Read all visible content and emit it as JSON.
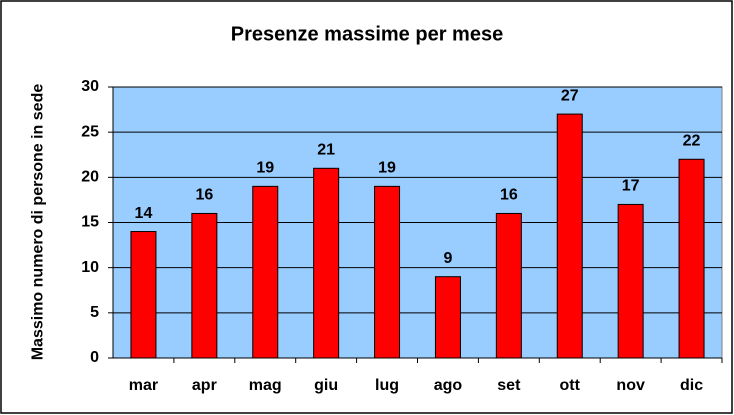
{
  "chart_data": {
    "type": "bar",
    "title": "Presenze massime per mese",
    "y_label": "Massimo numero di persone in sede",
    "categories": [
      "mar",
      "apr",
      "mag",
      "giu",
      "lug",
      "ago",
      "set",
      "ott",
      "nov",
      "dic"
    ],
    "values": [
      14,
      16,
      19,
      21,
      19,
      9,
      16,
      27,
      17,
      22
    ],
    "color": "#ff0000",
    "plot_background": "#99ccff",
    "ylim": [
      0,
      30
    ],
    "yticks": [
      0,
      5,
      10,
      15,
      20,
      25,
      30
    ],
    "grid": true
  }
}
